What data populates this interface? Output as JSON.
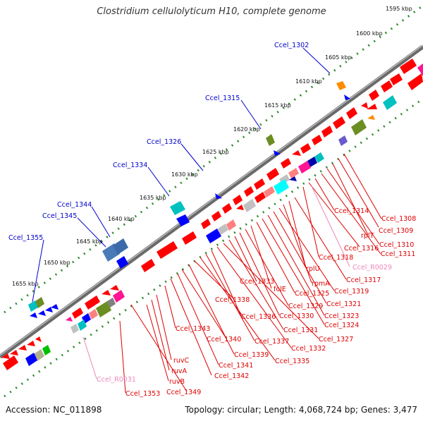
{
  "title": "Clostridium cellulolyticum H10, complete genome",
  "footer": {
    "accession": "Accession: NC_011898",
    "topology": "Topology: circular; Length: 4,068,724 bp; Genes: 3,477"
  },
  "colors": {
    "forward_gene": "#ff0000",
    "reverse_gene": "#0000ff",
    "backbone": "#888888",
    "tick_dots": "#2e8b2e",
    "locus_label": "#0000cc",
    "feature_label": "#dd0000",
    "rna_label": "#ee88bb"
  },
  "kbp_ticks": [
    "1595 kbp",
    "1600 kbp",
    "1605 kbp",
    "1610 kbp",
    "1615 kbp",
    "1620 kbp",
    "1625 kbp",
    "1630 kbp",
    "1635 kbp",
    "1640 kbp",
    "1645 kbp",
    "1650 kbp",
    "1655 kbp"
  ],
  "outer_labels": [
    "Ccel_1302",
    "Ccel_1315",
    "Ccel_1326",
    "Ccel_1334",
    "Ccel_1344",
    "Ccel_1345",
    "Ccel_1355"
  ],
  "inner_labels": [
    "Ccel_1308",
    "Ccel_1309",
    "rplT",
    "Ccel_1310",
    "Ccel_1311",
    "Ccel_1314",
    "Ccel_1316",
    "Ccel_1318",
    "Ccel_R0029",
    "Ccel_1317",
    "rplU",
    "rpmA",
    "Ccel_1319",
    "Ccel_1321",
    "Ccel_1323",
    "Ccel_1324",
    "Ccel_1325",
    "folE",
    "Ccel_1329",
    "Ccel_1330",
    "Ccel_1333",
    "Ccel_1331",
    "Ccel_1327",
    "Ccel_1332",
    "Ccel_1336",
    "Ccel_1337",
    "Ccel_1335",
    "Ccel_1338",
    "Ccel_1339",
    "Ccel_1340",
    "Ccel_1341",
    "Ccel_1342",
    "Ccel_1343",
    "ruvC",
    "ruvA",
    "ruvB",
    "Ccel_1349",
    "Ccel_1353",
    "Ccel_R0031"
  ]
}
